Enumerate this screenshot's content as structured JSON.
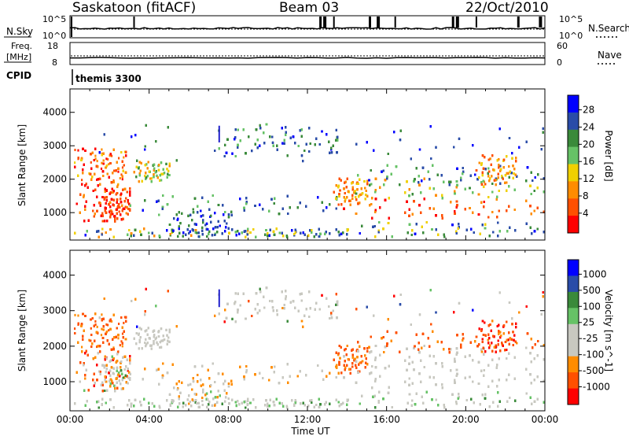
{
  "header": {
    "station": "Saskatoon (fitACF)",
    "beam": "Beam 03",
    "date": "22/Oct/2010"
  },
  "top_panels": {
    "nsky_label": "N.Sky",
    "nsearch_label": "N.Search",
    "nsky_ticks": [
      "10^5",
      "10^0"
    ],
    "nsky_right_ticks": [
      "10^5",
      "10^0"
    ],
    "freq_label_1": "Freq.",
    "freq_label_2": "[MHz]",
    "freq_ticks": [
      "18",
      "8"
    ],
    "nave_ticks": [
      "60",
      "0"
    ],
    "nave_label": "Nave",
    "cpid_label": "CPID",
    "cpid_value": "themis 3300"
  },
  "colors": {
    "power": [
      "#0000ff",
      "#2a4ca8",
      "#3a8a3a",
      "#66c266",
      "#f0d000",
      "#ff8c00",
      "#ff5000",
      "#ff0000"
    ],
    "velocity": [
      "#0000ff",
      "#2a4ca8",
      "#3a8a3a",
      "#66c266",
      "#c8c8c0",
      "#c8c8c0",
      "#ff8c00",
      "#ff5000",
      "#ff0000"
    ]
  },
  "chart_data": [
    {
      "type": "heatmap",
      "name_panel": "power",
      "ylabel": "Slant Range [km]",
      "yticks": [
        1000,
        2000,
        3000,
        4000
      ],
      "ylim": [
        180,
        4700
      ],
      "xlim_hours": [
        0,
        24
      ],
      "colorbar_label": "Power [dB]",
      "colorbar_ticks": [
        "28",
        "24",
        "20",
        "16",
        "12",
        "8",
        "4"
      ]
    },
    {
      "type": "heatmap",
      "name_panel": "velocity",
      "ylabel": "Slant Range [km]",
      "yticks": [
        1000,
        2000,
        3000,
        4000
      ],
      "ylim": [
        180,
        4700
      ],
      "xlim_hours": [
        0,
        24
      ],
      "colorbar_label": "Velocity [m s^-1]",
      "colorbar_ticks": [
        "1000",
        "500",
        "100",
        "25",
        "-25",
        "-100",
        "-500",
        "-1000"
      ]
    }
  ],
  "xaxis": {
    "ticks": [
      "00:00",
      "04:00",
      "08:00",
      "12:00",
      "16:00",
      "20:00",
      "00:00"
    ],
    "label": "Time UT"
  }
}
